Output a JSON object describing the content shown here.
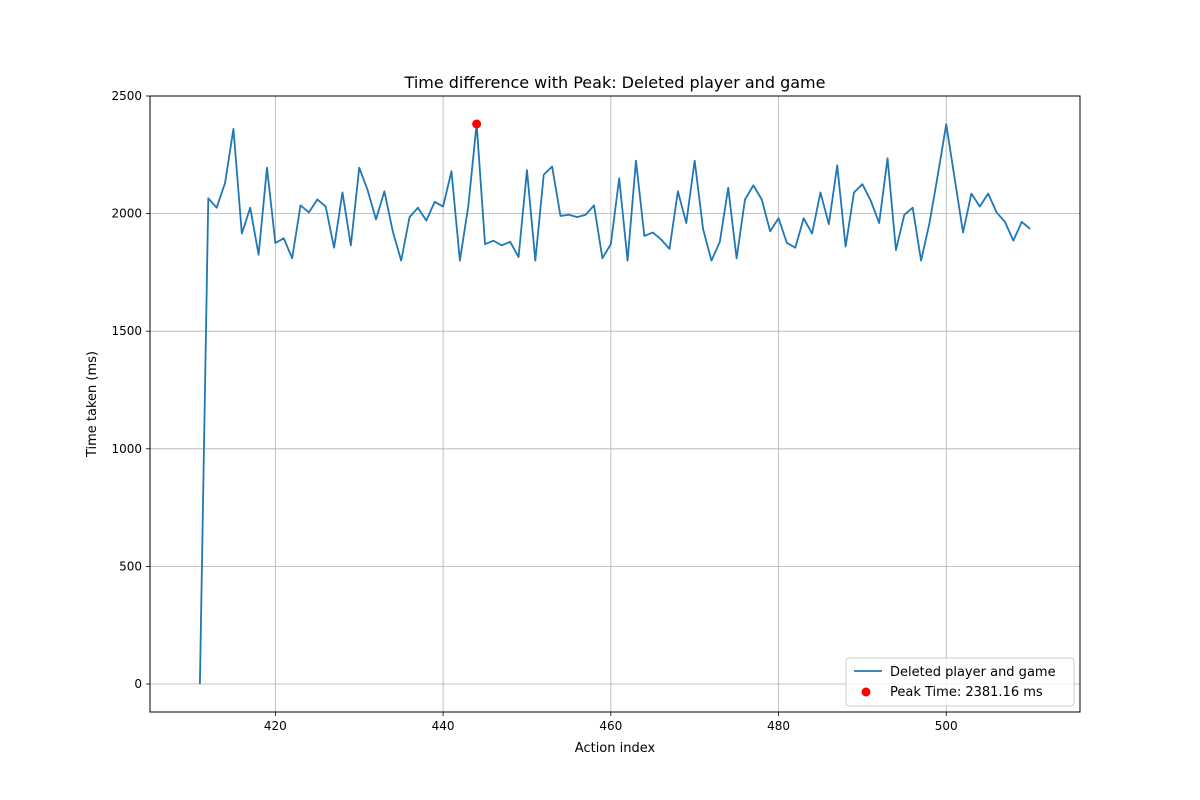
{
  "chart_data": {
    "type": "line",
    "title": "Time difference with Peak: Deleted player and game",
    "xlabel": "Action index",
    "ylabel": "Time taken (ms)",
    "xlim": [
      405.05,
      515.95
    ],
    "ylim": [
      -119.06,
      2500
    ],
    "xticks": [
      420,
      440,
      460,
      480,
      500
    ],
    "yticks": [
      0,
      500,
      1000,
      1500,
      2000,
      2500
    ],
    "grid": true,
    "legend_position": "lower right",
    "series": [
      {
        "name": "Deleted player and game",
        "type": "line",
        "color": "#1f77b4",
        "x": [
          411,
          412,
          413,
          414,
          415,
          416,
          417,
          418,
          419,
          420,
          421,
          422,
          423,
          424,
          425,
          426,
          427,
          428,
          429,
          430,
          431,
          432,
          433,
          434,
          435,
          436,
          437,
          438,
          439,
          440,
          441,
          442,
          443,
          444,
          445,
          446,
          447,
          448,
          449,
          450,
          451,
          452,
          453,
          454,
          455,
          456,
          457,
          458,
          459,
          460,
          461,
          462,
          463,
          464,
          465,
          466,
          467,
          468,
          469,
          470,
          471,
          472,
          473,
          474,
          475,
          476,
          477,
          478,
          479,
          480,
          481,
          482,
          483,
          484,
          485,
          486,
          487,
          488,
          489,
          490,
          491,
          492,
          493,
          494,
          495,
          496,
          497,
          498,
          499,
          500,
          501,
          502,
          503,
          504,
          505,
          506,
          507,
          508,
          509,
          510
        ],
        "y": [
          0,
          2065,
          2025,
          2130,
          2360,
          1915,
          2025,
          1825,
          2195,
          1875,
          1895,
          1810,
          2035,
          2005,
          2060,
          2030,
          1855,
          2090,
          1865,
          2195,
          2100,
          1975,
          2095,
          1925,
          1800,
          1985,
          2025,
          1970,
          2050,
          2030,
          2180,
          1800,
          2030,
          2381.16,
          1870,
          1885,
          1865,
          1880,
          1815,
          2185,
          1800,
          2165,
          2200,
          1990,
          1995,
          1985,
          1995,
          2035,
          1810,
          1870,
          2150,
          1800,
          2225,
          1905,
          1920,
          1890,
          1850,
          2095,
          1960,
          2225,
          1935,
          1800,
          1880,
          2110,
          1810,
          2060,
          2120,
          2060,
          1925,
          1980,
          1875,
          1855,
          1980,
          1915,
          2090,
          1955,
          2205,
          1860,
          2090,
          2125,
          2055,
          1960,
          2235,
          1845,
          1995,
          2025,
          1800,
          1960,
          2165,
          2380,
          2150,
          1920,
          2085,
          2030,
          2085,
          2005,
          1965,
          1885,
          1965,
          1935
        ]
      },
      {
        "name": "Peak Time: 2381.16 ms",
        "type": "scatter",
        "color": "#ff0000",
        "x": [
          444
        ],
        "y": [
          2381.16
        ]
      }
    ]
  }
}
